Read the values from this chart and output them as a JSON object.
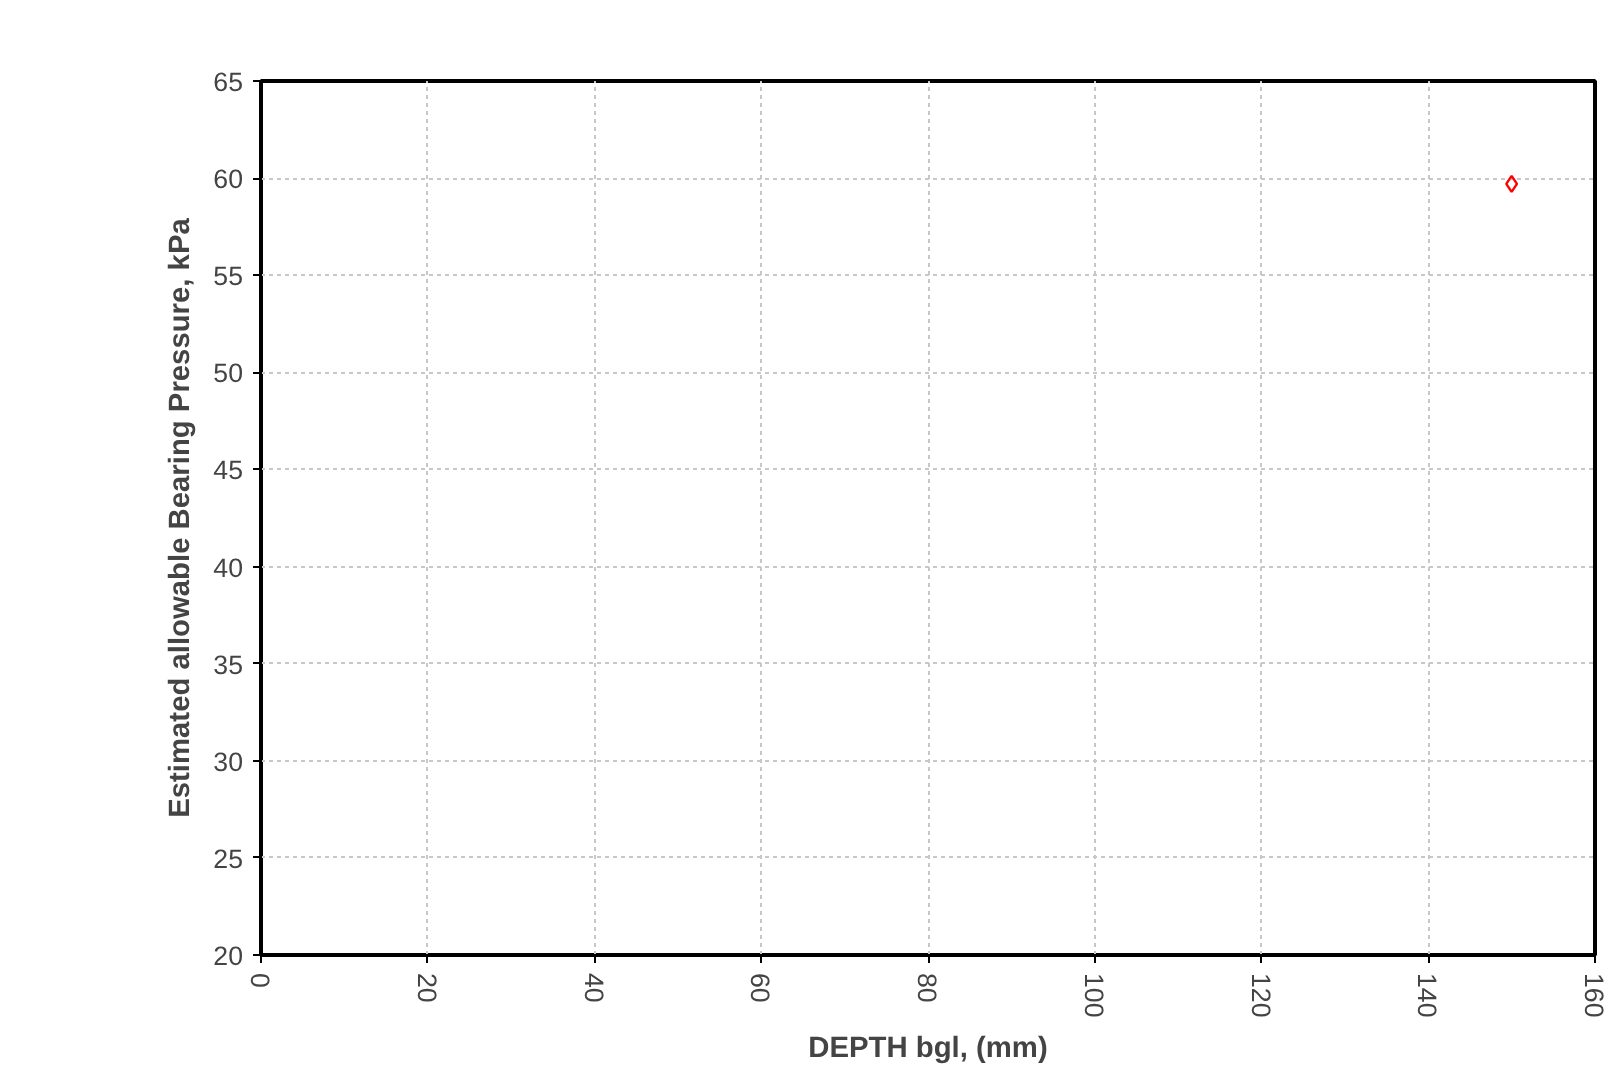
{
  "chart_data": {
    "type": "scatter",
    "xlabel": "DEPTH bgl, (mm)",
    "ylabel": "Estimated allowable Bearing Pressure, kPa",
    "x": [
      150
    ],
    "series": [
      {
        "color": "#ff0000",
        "values": [
          59.7
        ]
      }
    ],
    "marker": "diamond",
    "grid": true,
    "xlim": [
      0,
      160
    ],
    "xticks": [
      0,
      20,
      40,
      60,
      80,
      100,
      120,
      140,
      160
    ],
    "ylim": [
      20,
      65
    ],
    "yticks": [
      20,
      25,
      30,
      35,
      40,
      45,
      50,
      55,
      60,
      65
    ]
  }
}
